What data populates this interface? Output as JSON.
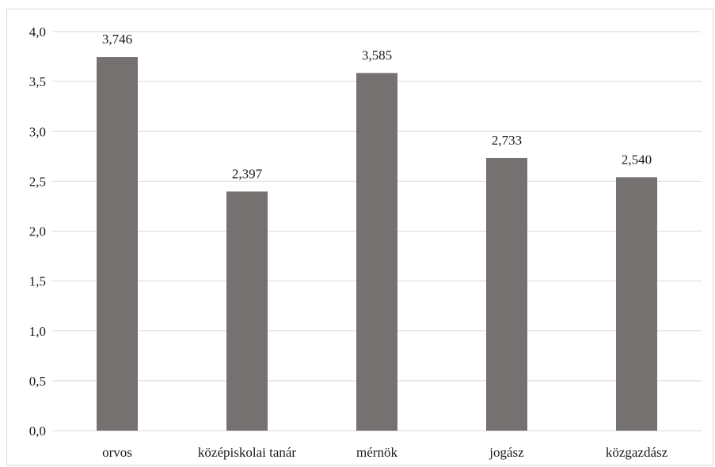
{
  "chart_data": {
    "type": "bar",
    "title": "",
    "xlabel": "",
    "ylabel": "",
    "categories": [
      "orvos",
      "középiskolai tanár",
      "mérnök",
      "jogász",
      "közgazdász"
    ],
    "values": [
      3.746,
      2.397,
      3.585,
      2.733,
      2.54
    ],
    "data_labels": [
      "3,746",
      "2,397",
      "3,585",
      "2,733",
      "2,540"
    ],
    "ylim": [
      0,
      4.0
    ],
    "yticks": [
      0,
      0.5,
      1.0,
      1.5,
      2.0,
      2.5,
      3.0,
      3.5,
      4.0
    ],
    "ytick_labels": [
      "0,0",
      "0,5",
      "1,0",
      "1,5",
      "2,0",
      "2,5",
      "3,0",
      "3,5",
      "4,0"
    ],
    "grid": true,
    "legend": "none",
    "bar_color": "#767171",
    "grid_color": "#d9d9d9"
  }
}
